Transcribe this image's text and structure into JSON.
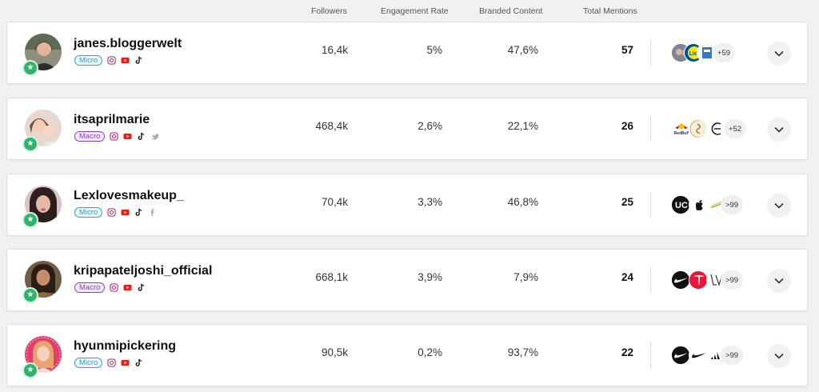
{
  "header": {
    "followers": "Followers",
    "engagement_rate": "Engagement Rate",
    "branded_content": "Branded Content",
    "total_mentions": "Total Mentions"
  },
  "rows": [
    {
      "handle": "janes.bloggerwelt",
      "tier": "Micro",
      "socials": [
        "instagram-icon",
        "youtube-icon",
        "tiktok-icon"
      ],
      "followers": "16,4k",
      "engagement_rate": "5%",
      "branded_content": "47,6%",
      "total_mentions": "57",
      "more_brands": "+59"
    },
    {
      "handle": "itsaprilmarie",
      "tier": "Macro",
      "socials": [
        "instagram-icon",
        "youtube-icon",
        "tiktok-icon",
        "twitter-icon"
      ],
      "followers": "468,4k",
      "engagement_rate": "2,6%",
      "branded_content": "22,1%",
      "total_mentions": "26",
      "more_brands": "+52"
    },
    {
      "handle": "Lexlovesmakeup_",
      "tier": "Micro",
      "socials": [
        "instagram-icon",
        "youtube-icon",
        "tiktok-icon",
        "facebook-icon"
      ],
      "followers": "70,4k",
      "engagement_rate": "3,3%",
      "branded_content": "46,8%",
      "total_mentions": "25",
      "more_brands": ">99"
    },
    {
      "handle": "kripapateljoshi_official",
      "tier": "Macro",
      "socials": [
        "instagram-icon",
        "youtube-icon",
        "tiktok-icon"
      ],
      "followers": "668,1k",
      "engagement_rate": "3,9%",
      "branded_content": "7,9%",
      "total_mentions": "24",
      "more_brands": ">99"
    },
    {
      "handle": "hyunmipickering",
      "tier": "Micro",
      "socials": [
        "instagram-icon",
        "youtube-icon",
        "tiktok-icon"
      ],
      "followers": "90,5k",
      "engagement_rate": "0,2%",
      "branded_content": "93,7%",
      "total_mentions": "22",
      "more_brands": ">99"
    }
  ],
  "colors": {
    "micro": "#2aa3c9",
    "macro": "#8b3dc7",
    "verified": "#2fb36b",
    "youtube": "#e62117",
    "instagram": "#c13584"
  }
}
